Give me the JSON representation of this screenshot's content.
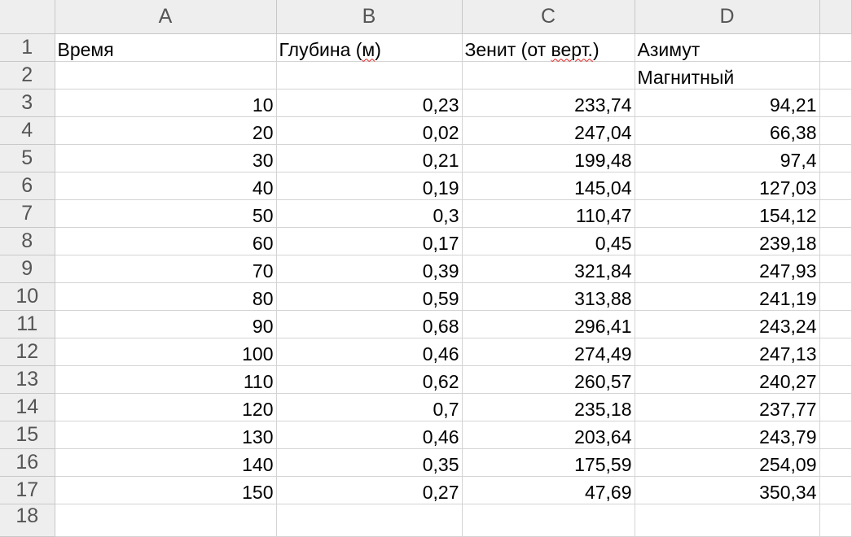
{
  "columns": [
    "A",
    "B",
    "C",
    "D"
  ],
  "header_row": {
    "row_number": "1",
    "cells": [
      {
        "text": "Время"
      },
      {
        "text_parts": [
          "Глубина (",
          "м",
          ")"
        ],
        "misspelled_index": 1
      },
      {
        "text_parts": [
          "Зенит (от ",
          "верт.",
          ")"
        ],
        "misspelled_index": 1
      },
      {
        "text": "Азимут"
      }
    ]
  },
  "row2": {
    "row_number": "2",
    "cells": [
      "",
      "",
      "",
      "Магнитный"
    ]
  },
  "rows": [
    {
      "row_number": "3",
      "values": [
        "10",
        "0,23",
        "233,74",
        "94,21"
      ]
    },
    {
      "row_number": "4",
      "values": [
        "20",
        "0,02",
        "247,04",
        "66,38"
      ]
    },
    {
      "row_number": "5",
      "values": [
        "30",
        "0,21",
        "199,48",
        "97,4"
      ]
    },
    {
      "row_number": "6",
      "values": [
        "40",
        "0,19",
        "145,04",
        "127,03"
      ]
    },
    {
      "row_number": "7",
      "values": [
        "50",
        "0,3",
        "110,47",
        "154,12"
      ]
    },
    {
      "row_number": "8",
      "values": [
        "60",
        "0,17",
        "0,45",
        "239,18"
      ]
    },
    {
      "row_number": "9",
      "values": [
        "70",
        "0,39",
        "321,84",
        "247,93"
      ]
    },
    {
      "row_number": "10",
      "values": [
        "80",
        "0,59",
        "313,88",
        "241,19"
      ]
    },
    {
      "row_number": "11",
      "values": [
        "90",
        "0,68",
        "296,41",
        "243,24"
      ]
    },
    {
      "row_number": "12",
      "values": [
        "100",
        "0,46",
        "274,49",
        "247,13"
      ]
    },
    {
      "row_number": "13",
      "values": [
        "110",
        "0,62",
        "260,57",
        "240,27"
      ]
    },
    {
      "row_number": "14",
      "values": [
        "120",
        "0,7",
        "235,18",
        "237,77"
      ]
    },
    {
      "row_number": "15",
      "values": [
        "130",
        "0,46",
        "203,64",
        "243,79"
      ]
    },
    {
      "row_number": "16",
      "values": [
        "140",
        "0,35",
        "175,59",
        "254,09"
      ]
    },
    {
      "row_number": "17",
      "values": [
        "150",
        "0,27",
        "47,69",
        "350,34"
      ]
    }
  ],
  "partial_row": {
    "row_number": "18"
  }
}
